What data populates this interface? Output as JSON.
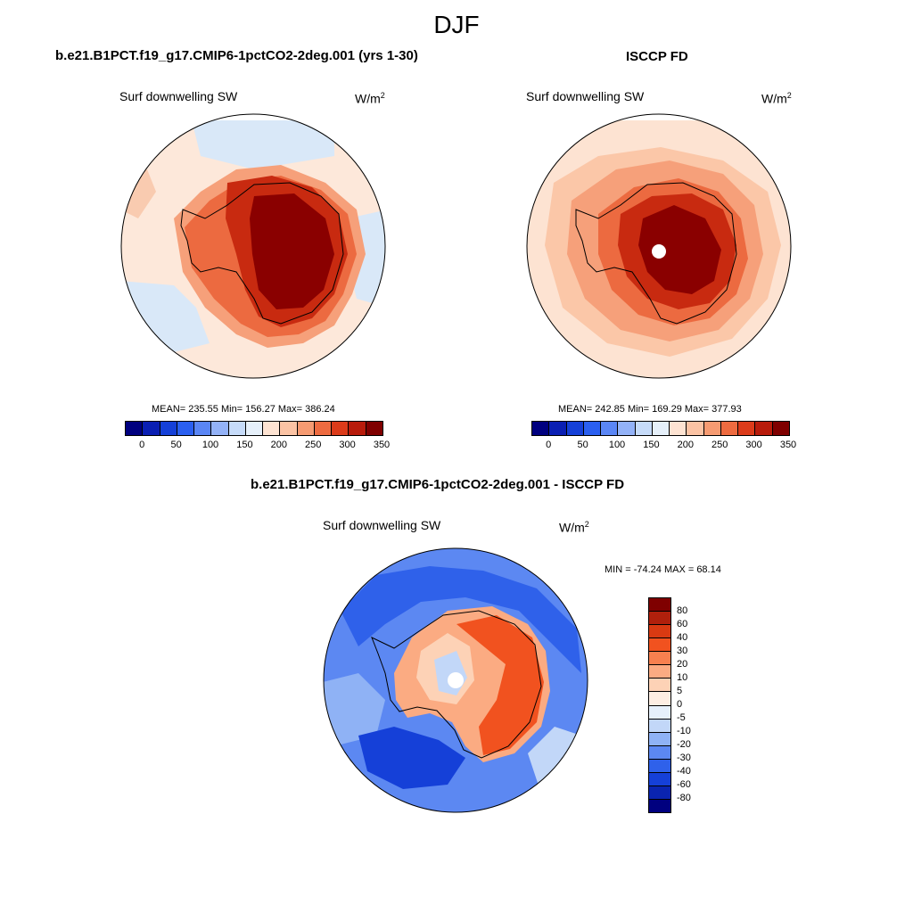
{
  "season": "DJF",
  "panel_case": {
    "title": "b.e21.B1PCT.f19_g17.CMIP6-1pctCO2-2deg.001 (yrs 1-30)",
    "variable": "Surf downwelling SW",
    "units": "W/m",
    "units_sup": "2",
    "stats": "MEAN= 235.55  Min= 156.27  Max= 386.24"
  },
  "panel_obs": {
    "title": "ISCCP FD",
    "variable": "Surf downwelling SW",
    "units": "W/m",
    "units_sup": "2",
    "stats": "MEAN= 242.85  Min= 169.29  Max= 377.93"
  },
  "panel_diff": {
    "title": "b.e21.B1PCT.f19_g17.CMIP6-1pctCO2-2deg.001 - ISCCP FD",
    "variable": "Surf downwelling SW",
    "units": "W/m",
    "units_sup": "2",
    "stats": "MIN = -74.24 MAX =  68.14"
  },
  "colorbar_abs": {
    "labels": [
      "0",
      "50",
      "100",
      "150",
      "200",
      "250",
      "300",
      "350"
    ],
    "colors": [
      "#00007f",
      "#0a1fb3",
      "#1540d8",
      "#2a5ff0",
      "#5a86f5",
      "#93b2f7",
      "#c6dbf9",
      "#e6f0fa",
      "#fde3d2",
      "#fbc3a4",
      "#f69b72",
      "#ee6b40",
      "#dc3b1a",
      "#b81b0b",
      "#7f0000"
    ]
  },
  "colorbar_diff": {
    "labels": [
      "80",
      "60",
      "40",
      "30",
      "20",
      "10",
      "5",
      "0",
      "-5",
      "-10",
      "-20",
      "-30",
      "-40",
      "-60",
      "-80"
    ],
    "colors": [
      "#7f0000",
      "#b0200c",
      "#d93a12",
      "#f1521f",
      "#f7804f",
      "#fbab82",
      "#fdd2b6",
      "#fdeee3",
      "#e6f0fb",
      "#c2d7f8",
      "#8fb2f5",
      "#5c88f2",
      "#2f61ea",
      "#1540d8",
      "#0a24b0",
      "#00007f"
    ]
  }
}
